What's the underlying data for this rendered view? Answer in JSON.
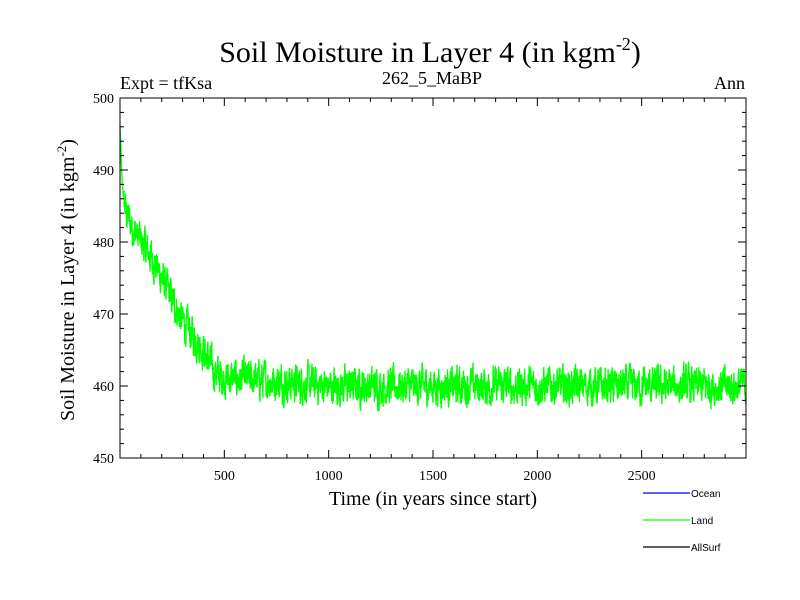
{
  "chart_data": {
    "type": "line",
    "title": "Soil Moisture in Layer 4 (in kgm",
    "title_sup": "-2",
    "title_close": ")",
    "subtitle_left": "Expt = tfKsa",
    "subtitle_center": "262_5_MaBP",
    "subtitle_right": "Ann",
    "xlabel": "Time (in years since start)",
    "ylabel": "Soil Moisture in Layer 4 (in kgm",
    "ylabel_sup": "-2",
    "ylabel_close": ")",
    "xlim": [
      0,
      3000
    ],
    "ylim": [
      450,
      500
    ],
    "x_ticks": [
      500,
      1000,
      1500,
      2000,
      2500
    ],
    "y_ticks": [
      450,
      460,
      470,
      480,
      490,
      500
    ],
    "legend": [
      {
        "name": "Ocean",
        "color": "#0000ff"
      },
      {
        "name": "Land",
        "color": "#00ff00"
      },
      {
        "name": "AllSurf",
        "color": "#000000"
      }
    ],
    "series": [
      {
        "name": "Land",
        "color": "#00ff00",
        "description_trend": "Rapid decline from ~496 at year 0 to ~483 by year 50, continuing decline to ~461 by year 500, then fluctuating around 460 (+/-4) until year 3000",
        "anchor_points": [
          [
            0,
            496
          ],
          [
            10,
            488
          ],
          [
            30,
            484
          ],
          [
            60,
            482
          ],
          [
            100,
            480
          ],
          [
            150,
            478
          ],
          [
            200,
            475
          ],
          [
            250,
            472
          ],
          [
            300,
            469
          ],
          [
            350,
            467
          ],
          [
            400,
            465
          ],
          [
            450,
            462
          ],
          [
            500,
            461
          ],
          [
            600,
            461
          ],
          [
            800,
            460.5
          ],
          [
            1000,
            460
          ],
          [
            1500,
            460
          ],
          [
            2000,
            460
          ],
          [
            2500,
            460
          ],
          [
            3000,
            460
          ]
        ],
        "noise_amplitude": 4.5
      }
    ]
  }
}
